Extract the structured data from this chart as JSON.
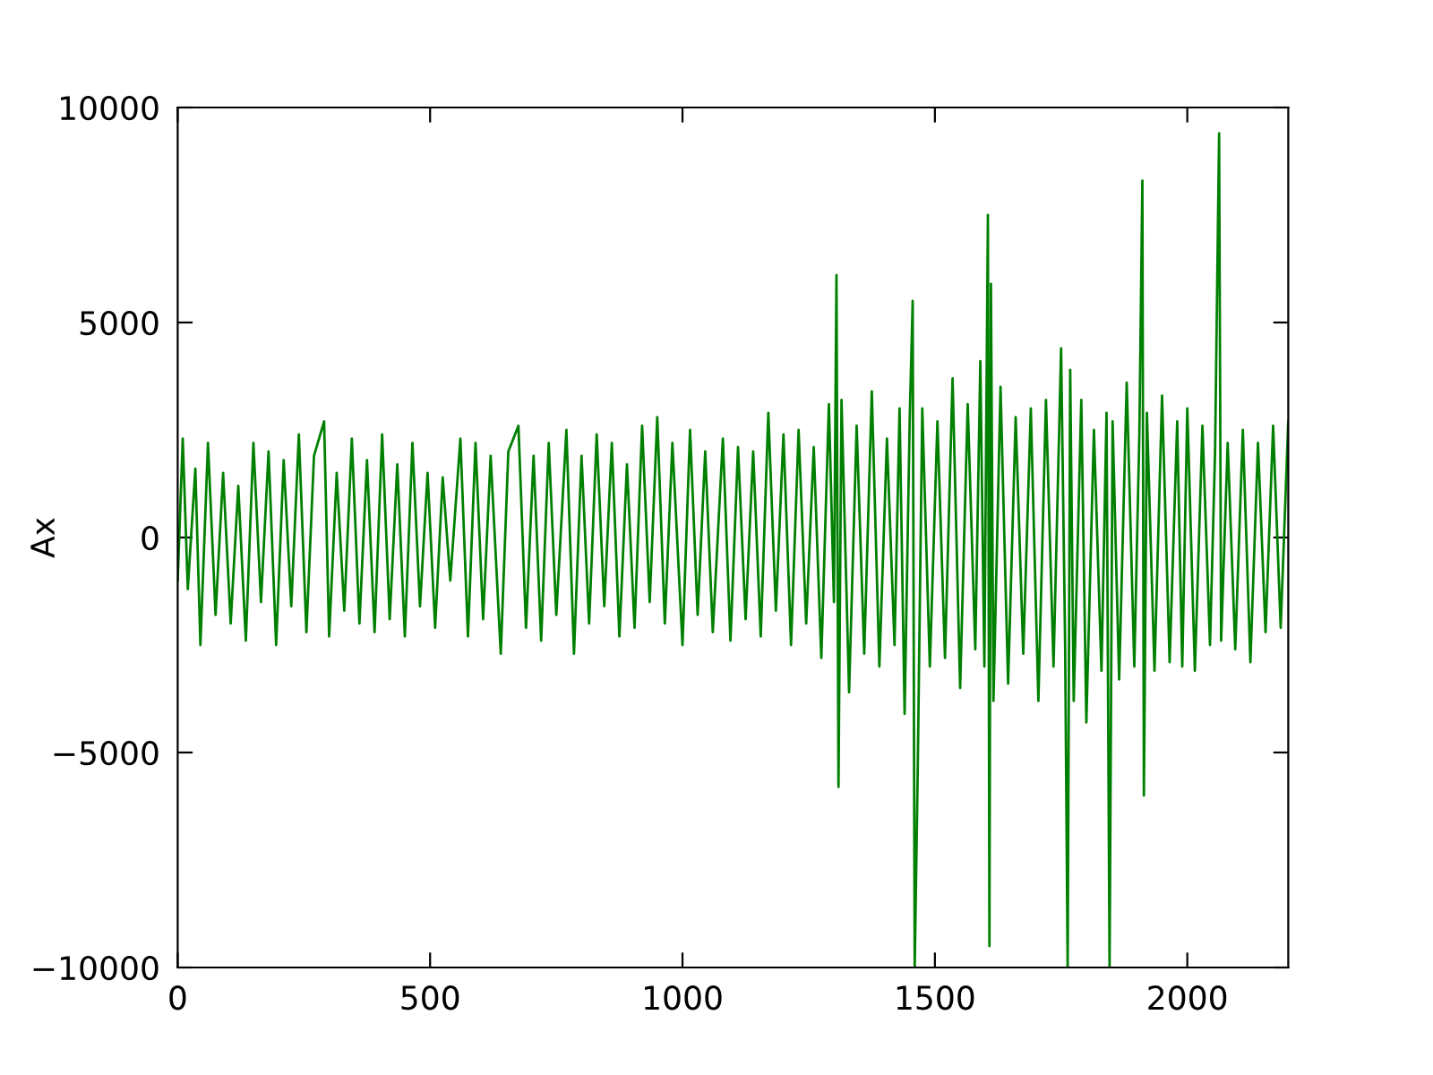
{
  "chart_data": {
    "type": "line",
    "ylabel": "Ax",
    "xlim": [
      0,
      2200
    ],
    "ylim": [
      -10000,
      10000
    ],
    "xticks": [
      0,
      500,
      1000,
      1500,
      2000
    ],
    "yticks": [
      {
        "value": -10000,
        "label": "−10000"
      },
      {
        "value": -5000,
        "label": "−5000"
      },
      0,
      5000,
      10000
    ],
    "grid": false,
    "marker": "none",
    "line_style": "solid",
    "series": [
      {
        "color": "#008000",
        "x": [
          0,
          10,
          20,
          35,
          45,
          60,
          75,
          90,
          105,
          120,
          135,
          150,
          165,
          180,
          195,
          210,
          225,
          240,
          255,
          270,
          290,
          300,
          315,
          330,
          345,
          360,
          375,
          390,
          405,
          420,
          435,
          450,
          465,
          480,
          495,
          510,
          525,
          540,
          560,
          575,
          590,
          605,
          620,
          640,
          655,
          675,
          690,
          705,
          720,
          735,
          750,
          770,
          785,
          800,
          815,
          830,
          845,
          860,
          875,
          890,
          905,
          920,
          935,
          950,
          965,
          980,
          1000,
          1015,
          1030,
          1045,
          1060,
          1080,
          1095,
          1110,
          1125,
          1140,
          1155,
          1170,
          1185,
          1200,
          1215,
          1230,
          1245,
          1260,
          1275,
          1290,
          1300,
          1305,
          1309,
          1315,
          1330,
          1345,
          1360,
          1375,
          1390,
          1405,
          1420,
          1430,
          1440,
          1450,
          1456,
          1460,
          1466,
          1475,
          1490,
          1505,
          1520,
          1535,
          1550,
          1565,
          1580,
          1590,
          1598,
          1605,
          1608,
          1611,
          1616,
          1630,
          1645,
          1660,
          1675,
          1690,
          1705,
          1720,
          1735,
          1750,
          1758,
          1763,
          1768,
          1775,
          1790,
          1800,
          1815,
          1830,
          1840,
          1846,
          1852,
          1865,
          1880,
          1895,
          1905,
          1911,
          1914,
          1920,
          1935,
          1950,
          1965,
          1980,
          1990,
          2000,
          2015,
          2030,
          2045,
          2055,
          2063,
          2067,
          2080,
          2095,
          2110,
          2125,
          2140,
          2155,
          2170,
          2185,
          2200
        ],
        "values": [
          -1000,
          2300,
          -1200,
          1600,
          -2500,
          2200,
          -1800,
          1500,
          -2000,
          1200,
          -2400,
          2200,
          -1500,
          2000,
          -2500,
          1800,
          -1600,
          2400,
          -2200,
          1900,
          2700,
          -2300,
          1500,
          -1700,
          2300,
          -2000,
          1800,
          -2200,
          2400,
          -1900,
          1700,
          -2300,
          2200,
          -1600,
          1500,
          -2100,
          1400,
          -1000,
          2300,
          -2300,
          2200,
          -1900,
          1900,
          -2700,
          2000,
          2600,
          -2100,
          1900,
          -2400,
          2200,
          -1800,
          2500,
          -2700,
          1900,
          -2000,
          2400,
          -1600,
          2200,
          -2300,
          1700,
          -2100,
          2600,
          -1500,
          2800,
          -2000,
          2200,
          -2500,
          2500,
          -1800,
          2000,
          -2200,
          2300,
          -2400,
          2100,
          -1900,
          2000,
          -2300,
          2900,
          -1700,
          2400,
          -2500,
          2500,
          -2000,
          2100,
          -2800,
          3100,
          -1500,
          6100,
          -5800,
          3200,
          -3600,
          2600,
          -2700,
          3400,
          -3000,
          2300,
          -2500,
          3000,
          -4100,
          2700,
          5500,
          -10000,
          -5400,
          3000,
          -3000,
          2700,
          -2800,
          3700,
          -3500,
          3100,
          -2600,
          4100,
          -3000,
          7500,
          -9500,
          5900,
          -3800,
          3500,
          -3400,
          2800,
          -2700,
          3000,
          -3800,
          3200,
          -3000,
          4400,
          -2500,
          -10000,
          3900,
          -3800,
          3200,
          -4300,
          2500,
          -3100,
          2900,
          -10000,
          2700,
          -3300,
          3600,
          -3000,
          2400,
          8300,
          -6000,
          2900,
          -3100,
          3300,
          -2900,
          2700,
          -3000,
          3000,
          -3100,
          2600,
          -2500,
          2000,
          9400,
          -2400,
          2200,
          -2600,
          2500,
          -2900,
          2200,
          -2200,
          2600,
          -2100,
          2700
        ]
      }
    ]
  }
}
